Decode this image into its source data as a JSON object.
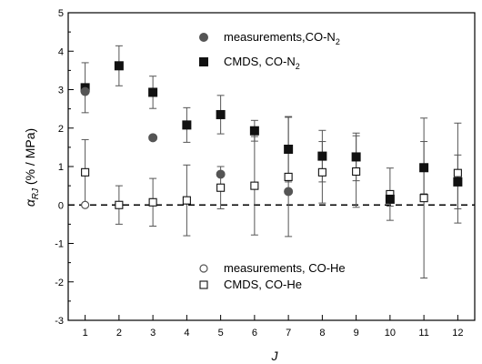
{
  "chart_data": {
    "type": "scatter",
    "title": "",
    "xlabel": "J",
    "ylabel": "α_RJ (% / MPa)",
    "xlim": [
      0.5,
      12.5
    ],
    "ylim": [
      -3,
      5
    ],
    "xticks": [
      1,
      2,
      3,
      4,
      5,
      6,
      7,
      8,
      9,
      10,
      11,
      12
    ],
    "yticks": [
      -3,
      -2,
      -1,
      0,
      1,
      2,
      3,
      4,
      5
    ],
    "grid": false,
    "reference_line": {
      "y": 0,
      "style": "dashed"
    },
    "series": [
      {
        "name": "measurements,CO-N2",
        "marker": "filled-circle",
        "color": "#555555",
        "points": [
          {
            "x": 1,
            "y": 2.95
          },
          {
            "x": 3,
            "y": 1.75
          },
          {
            "x": 5,
            "y": 0.8
          },
          {
            "x": 7,
            "y": 0.35
          }
        ]
      },
      {
        "name": "CMDS, CO-N2",
        "marker": "filled-square",
        "color": "#111111",
        "points": [
          {
            "x": 1,
            "y": 3.05,
            "err": 0.65
          },
          {
            "x": 2,
            "y": 3.62,
            "err": 0.52
          },
          {
            "x": 3,
            "y": 2.93,
            "err": 0.42
          },
          {
            "x": 4,
            "y": 2.08,
            "err": 0.45
          },
          {
            "x": 5,
            "y": 2.35,
            "err": 0.5
          },
          {
            "x": 6,
            "y": 1.93,
            "err": 0.27
          },
          {
            "x": 7,
            "y": 1.45,
            "err": 0.85
          },
          {
            "x": 8,
            "y": 1.27,
            "err": 0.67
          },
          {
            "x": 9,
            "y": 1.25,
            "err": 0.62
          },
          {
            "x": 10,
            "y": 0.15,
            "err": 0.18
          },
          {
            "x": 11,
            "y": 0.97,
            "err": 0.68
          },
          {
            "x": 12,
            "y": 0.6,
            "err": 0.7
          }
        ]
      },
      {
        "name": "measurements, CO-He",
        "marker": "open-circle",
        "color": "#555555",
        "points": [
          {
            "x": 1,
            "y": 0.0
          }
        ]
      },
      {
        "name": "CMDS, CO-He",
        "marker": "open-square",
        "color": "#111111",
        "points": [
          {
            "x": 1,
            "y": 0.85,
            "err": 0.85
          },
          {
            "x": 2,
            "y": 0.0,
            "err": 0.5
          },
          {
            "x": 3,
            "y": 0.07,
            "err": 0.62
          },
          {
            "x": 4,
            "y": 0.12,
            "err": 0.92
          },
          {
            "x": 5,
            "y": 0.45,
            "err": 0.55
          },
          {
            "x": 6,
            "y": 0.5,
            "err": 1.28
          },
          {
            "x": 7,
            "y": 0.73,
            "err": 1.55
          },
          {
            "x": 8,
            "y": 0.85,
            "err": 0.8
          },
          {
            "x": 9,
            "y": 0.87,
            "err": 0.93
          },
          {
            "x": 10,
            "y": 0.28,
            "err": 0.68
          },
          {
            "x": 11,
            "y": 0.18,
            "err": 2.08
          },
          {
            "x": 12,
            "y": 0.83,
            "err": 1.3
          }
        ]
      }
    ],
    "legend": [
      {
        "label": "measurements,CO-N",
        "sub": "2",
        "marker": "filled-circle"
      },
      {
        "label": "CMDS, CO-N",
        "sub": "2",
        "marker": "filled-square"
      },
      {
        "label": "measurements, CO-He",
        "sub": "",
        "marker": "open-circle"
      },
      {
        "label": "CMDS, CO-He",
        "sub": "",
        "marker": "open-square"
      }
    ],
    "ylabel_main": "α",
    "ylabel_sub": "RJ",
    "ylabel_rest": " (% / MPa)"
  }
}
